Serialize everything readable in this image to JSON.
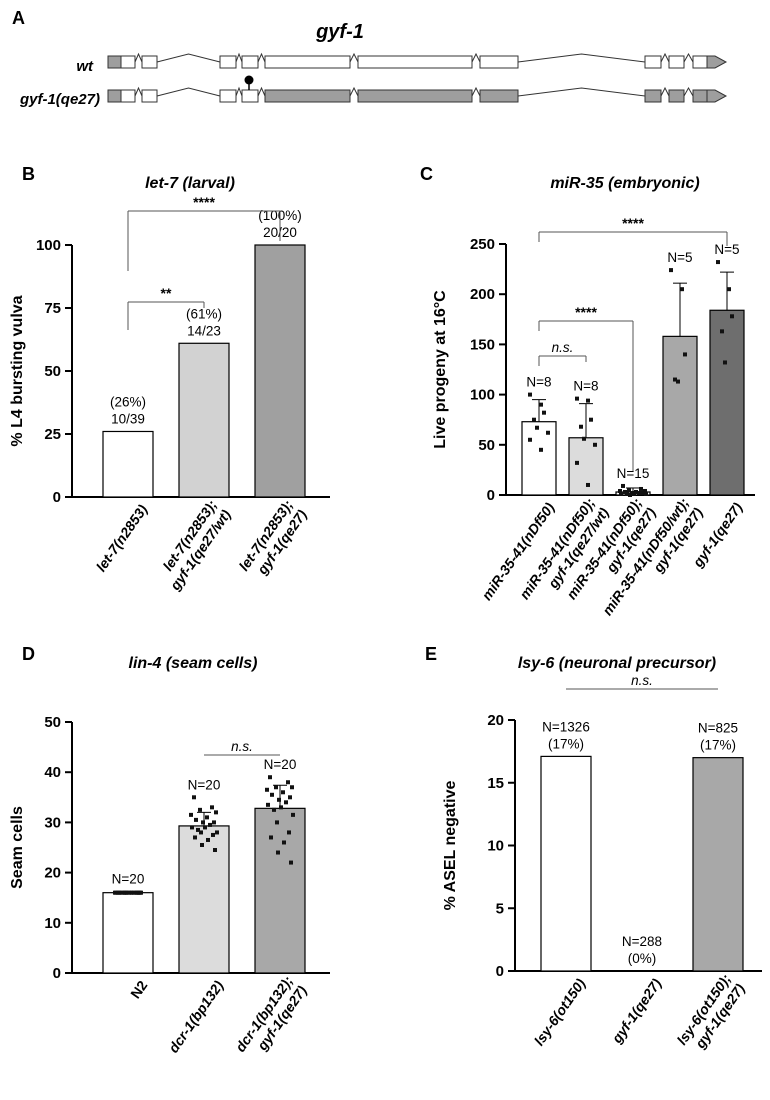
{
  "panel_labels": [
    "A",
    "B",
    "C",
    "D",
    "E"
  ],
  "gene_panel": {
    "title": "gyf-1",
    "tracks": [
      {
        "label": "wt",
        "fill": "#ffffff"
      },
      {
        "label": "gyf-1(qe27)",
        "fill": "#9e9e9e"
      }
    ]
  },
  "chart_data": [
    {
      "panel": "B",
      "type": "bar",
      "title": "let-7 (larval)",
      "ylabel": "% L4 bursting vulva",
      "ylim": [
        0,
        100
      ],
      "yticks": [
        "0",
        "25",
        "50",
        "75",
        "100"
      ],
      "categories": [
        [
          "let-7(n2853)"
        ],
        [
          "let-7(n2853);",
          "gyf-1(qe27/wt)"
        ],
        [
          "let-7(n2853);",
          "gyf-1(qe27)"
        ]
      ],
      "values": [
        26,
        61,
        100
      ],
      "bar_colors": [
        "#ffffff",
        "#d2d2d2",
        "#a0a0a0"
      ],
      "data_labels": [
        [
          "(26%)",
          "10/39"
        ],
        [
          "(61%)",
          "14/23"
        ],
        [
          "(100%)",
          "20/20"
        ]
      ],
      "significance": [
        {
          "from": 0,
          "to": 1,
          "label": "**"
        },
        {
          "from": 0,
          "to": 2,
          "label": "****"
        }
      ]
    },
    {
      "panel": "C",
      "type": "bar",
      "title": "miR-35 (embryonic)",
      "ylabel": "Live progeny at 16°C",
      "ylim": [
        0,
        250
      ],
      "yticks": [
        "0",
        "50",
        "100",
        "150",
        "200",
        "250"
      ],
      "categories": [
        [
          "miR-35-41(nDf50)"
        ],
        [
          "miR-35-41(nDf50);",
          "gyf-1(qe27/wt)"
        ],
        [
          "miR-35-41(nDf50);",
          "gyf-1(qe27)"
        ],
        [
          "miR-35-41(nDf50/wt);",
          "gyf-1(qe27)"
        ],
        [
          "gyf-1(qe27)"
        ]
      ],
      "values": [
        73,
        57,
        3,
        158,
        184
      ],
      "errors": [
        22,
        34,
        4,
        53,
        38
      ],
      "points": [
        [
          100,
          90,
          82,
          75,
          67,
          62,
          55,
          45
        ],
        [
          96,
          94,
          75,
          68,
          56,
          50,
          32,
          10
        ],
        [
          9,
          6,
          5,
          4,
          4,
          3,
          3,
          2,
          2,
          2,
          1,
          1,
          1,
          1,
          0
        ],
        [
          224,
          205,
          140,
          115,
          113
        ],
        [
          232,
          205,
          178,
          163,
          132
        ]
      ],
      "bar_colors": [
        "#ffffff",
        "#dcdcdc",
        "#ffffff",
        "#a8a8a8",
        "#6e6e6e"
      ],
      "n_labels": [
        "N=8",
        "N=8",
        "N=15",
        "N=5",
        "N=5"
      ],
      "significance": [
        {
          "from": 0,
          "to": 1,
          "label": "n.s."
        },
        {
          "from": 0,
          "to": 2,
          "label": "****"
        },
        {
          "from": 0,
          "to": 4,
          "label": "****"
        }
      ]
    },
    {
      "panel": "D",
      "type": "bar",
      "title": "lin-4 (seam cells)",
      "ylabel": "Seam cells",
      "ylim": [
        0,
        50
      ],
      "yticks": [
        "0",
        "10",
        "20",
        "30",
        "40",
        "50"
      ],
      "categories": [
        [
          "N2"
        ],
        [
          "dcr-1(bp132)"
        ],
        [
          "dcr-1(bp132);",
          "gyf-1(qe27)"
        ]
      ],
      "category_italic": [
        false,
        true,
        true
      ],
      "values": [
        16,
        29.3,
        32.8
      ],
      "errors": [
        0.2,
        2.7,
        4.6
      ],
      "points": [
        [
          16,
          16,
          16,
          16,
          16,
          16,
          16,
          16,
          16,
          16,
          16,
          16,
          16,
          16,
          16,
          16,
          16,
          16,
          16,
          16
        ],
        [
          35,
          33,
          32.5,
          32,
          31.5,
          31,
          30.5,
          30,
          30,
          29.5,
          29,
          29,
          28.5,
          28,
          28,
          27.5,
          27,
          26.5,
          25.5,
          24.5
        ],
        [
          39,
          38,
          37,
          37,
          36.5,
          36,
          35.5,
          35,
          34.5,
          34,
          33.5,
          33,
          32.5,
          31.5,
          30,
          28,
          27,
          26,
          24,
          22
        ]
      ],
      "bar_colors": [
        "#ffffff",
        "#dcdcdc",
        "#a8a8a8"
      ],
      "n_labels": [
        "N=20",
        "N=20",
        "N=20"
      ],
      "significance": [
        {
          "from": 1,
          "to": 2,
          "label": "n.s."
        }
      ]
    },
    {
      "panel": "E",
      "type": "bar",
      "title": "lsy-6 (neuronal precursor)",
      "ylabel": "% ASEL negative",
      "ylim": [
        0,
        20
      ],
      "yticks": [
        "0",
        "5",
        "10",
        "15",
        "20"
      ],
      "categories": [
        [
          "lsy-6(ot150)"
        ],
        [
          "gyf-1(qe27)"
        ],
        [
          "lsy-6(ot150);",
          "gyf-1(qe27)"
        ]
      ],
      "category_italic": [
        true,
        true,
        true
      ],
      "values": [
        17.1,
        0,
        17
      ],
      "bar_colors": [
        "#ffffff",
        "#ffffff",
        "#a8a8a8"
      ],
      "data_labels": [
        [
          "N=1326",
          "(17%)"
        ],
        [
          "N=288",
          "(0%)"
        ],
        [
          "N=825",
          "(17%)"
        ]
      ],
      "significance": [
        {
          "from": 0,
          "to": 2,
          "label": "n.s."
        }
      ]
    }
  ]
}
